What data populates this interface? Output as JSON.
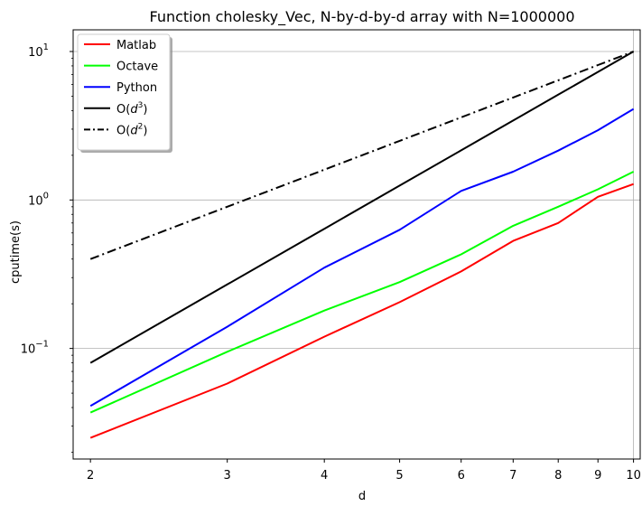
{
  "chart_data": {
    "type": "line",
    "title": "Function cholesky_Vec, N-by-d-by-d array with N=1000000",
    "xlabel": "d",
    "ylabel": "cputime(s)",
    "xscale": "log",
    "yscale": "log",
    "xlim": [
      1.9,
      10.2
    ],
    "ylim": [
      0.018,
      14
    ],
    "grid": "major-gridlines-on",
    "legend_position": "top-left",
    "x": [
      2,
      3,
      4,
      5,
      6,
      7,
      8,
      9,
      10
    ],
    "x_tick_labels": [
      "2",
      "3",
      "4",
      "5",
      "6",
      "7",
      "8",
      "9",
      "10"
    ],
    "y_ticks": [
      {
        "value": 0.1,
        "base": "10",
        "exp": "−1"
      },
      {
        "value": 1,
        "base": "10",
        "exp": "0"
      },
      {
        "value": 10,
        "base": "10",
        "exp": "1"
      }
    ],
    "series": [
      {
        "name": "Matlab",
        "color": "#ff0000",
        "dash": "solid",
        "values": [
          0.025,
          0.058,
          0.12,
          0.205,
          0.33,
          0.53,
          0.7,
          1.05,
          1.28
        ]
      },
      {
        "name": "Octave",
        "color": "#00ff00",
        "dash": "solid",
        "values": [
          0.037,
          0.095,
          0.18,
          0.28,
          0.43,
          0.67,
          0.9,
          1.18,
          1.55
        ]
      },
      {
        "name": "Python",
        "color": "#0000ff",
        "dash": "solid",
        "values": [
          0.041,
          0.14,
          0.35,
          0.63,
          1.15,
          1.55,
          2.15,
          2.95,
          4.1
        ]
      },
      {
        "name": "O(d^3)",
        "name_parts": {
          "prefix": "O(",
          "var": "d",
          "sup": "3",
          "suffix": ")"
        },
        "color": "#000000",
        "dash": "solid",
        "values": [
          0.08,
          0.27,
          0.64,
          1.25,
          2.16,
          3.43,
          5.12,
          7.29,
          10.0
        ]
      },
      {
        "name": "O(d^2)",
        "name_parts": {
          "prefix": "O(",
          "var": "d",
          "sup": "2",
          "suffix": ")"
        },
        "color": "#000000",
        "dash": "dashdot",
        "values": [
          0.4,
          0.9,
          1.6,
          2.5,
          3.6,
          4.9,
          6.4,
          8.1,
          10.0
        ]
      }
    ]
  }
}
